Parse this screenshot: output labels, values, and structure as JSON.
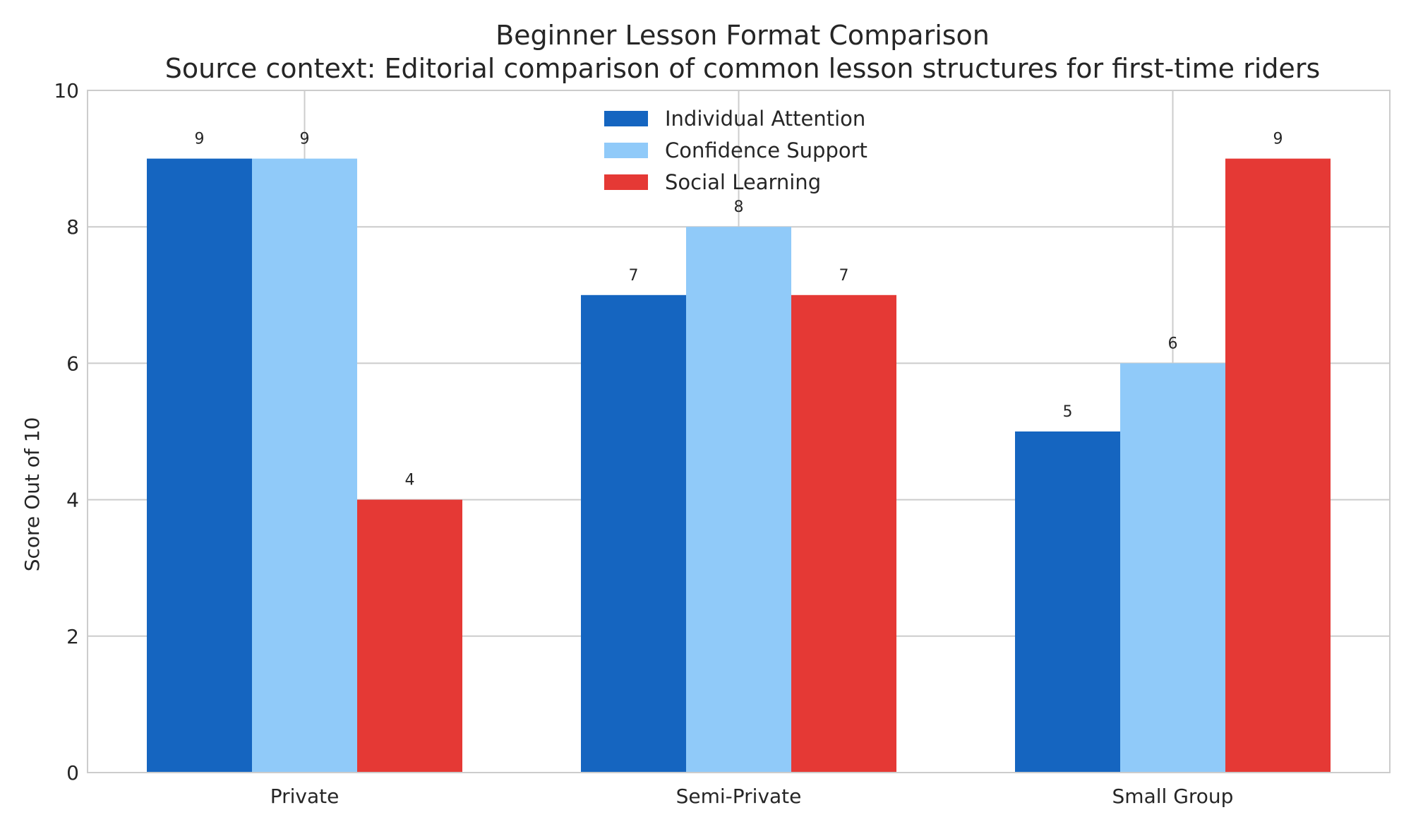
{
  "chart_data": {
    "type": "bar",
    "title": "Beginner Lesson Format Comparison",
    "subtitle": "Source context: Editorial comparison of common lesson structures for first-time riders",
    "xlabel": "",
    "ylabel": "Score Out of 10",
    "ylim": [
      0,
      10
    ],
    "yticks": [
      0,
      2,
      4,
      6,
      8,
      10
    ],
    "categories": [
      "Private",
      "Semi-Private",
      "Small Group"
    ],
    "series": [
      {
        "name": "Individual Attention",
        "color": "#1565c0",
        "values": [
          9,
          7,
          5
        ]
      },
      {
        "name": "Confidence Support",
        "color": "#90caf9",
        "values": [
          9,
          8,
          6
        ]
      },
      {
        "name": "Social Learning",
        "color": "#e53935",
        "values": [
          4,
          7,
          9
        ]
      }
    ],
    "grid": true,
    "legend_position": "top-center"
  }
}
